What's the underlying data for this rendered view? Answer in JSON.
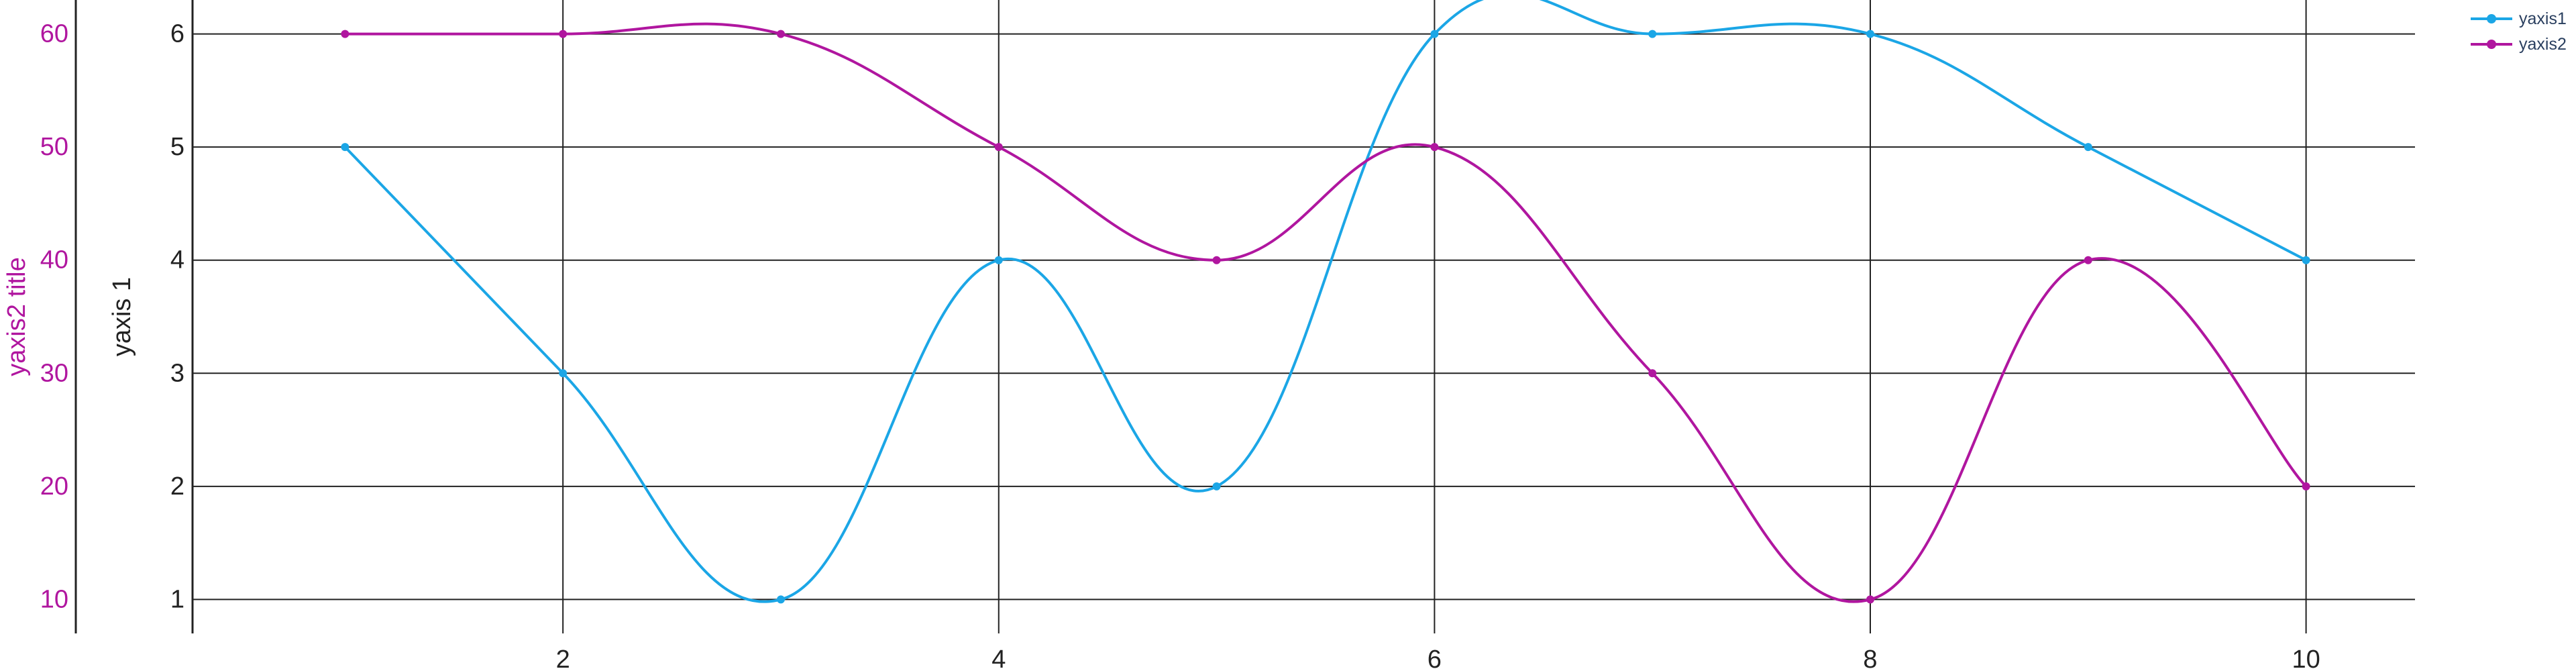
{
  "chart_data": {
    "type": "line",
    "x": [
      1,
      2,
      3,
      4,
      5,
      6,
      7,
      8,
      9,
      10
    ],
    "x_ticks": [
      2,
      4,
      6,
      8,
      10
    ],
    "x_ticks_text": [
      "2",
      "4",
      "6",
      "8",
      "10"
    ],
    "xlim": [
      0.3,
      10.5
    ],
    "series": [
      {
        "name": "yaxis1",
        "axis": "y1",
        "color": "#1ba6e6",
        "values": [
          5,
          3,
          1,
          4,
          2,
          6,
          6,
          6,
          5,
          4
        ]
      },
      {
        "name": "yaxis2",
        "axis": "y2",
        "color": "#b0169f",
        "values": [
          60,
          60,
          60,
          50,
          40,
          50,
          30,
          10,
          40,
          20
        ]
      }
    ],
    "y1": {
      "title": "yaxis 1",
      "ticks": [
        1,
        2,
        3,
        4,
        5,
        6
      ],
      "ticks_text": [
        "1",
        "2",
        "3",
        "4",
        "5",
        "6"
      ],
      "ylim": [
        0.7,
        6.3
      ],
      "color": "#222222"
    },
    "y2": {
      "title": "yaxis2 title",
      "ticks": [
        10,
        20,
        30,
        40,
        50,
        60
      ],
      "ticks_text": [
        "10",
        "20",
        "30",
        "40",
        "50",
        "60"
      ],
      "ylim": [
        7,
        63
      ],
      "color": "#b0169f"
    },
    "grid": true,
    "legend_position": "top-right"
  }
}
